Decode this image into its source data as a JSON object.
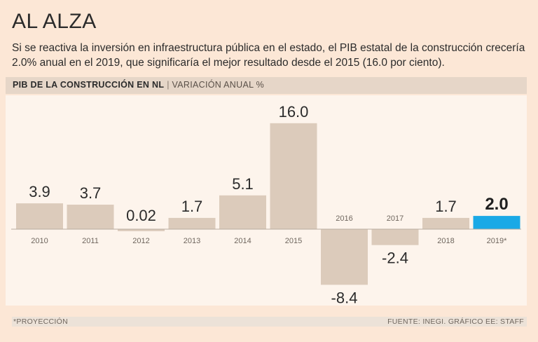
{
  "header": {
    "title": "AL ALZA",
    "subtitle": "Si se reactiva la inversión en infraestructura pública en el estado, el PIB estatal de la construcción crecería 2.0% anual en el 2019, que significaría el mejor resultado desde el 2015 (16.0 por ciento)."
  },
  "chart_header": {
    "label": "PIB DE LA CONSTRUCCIÓN EN NL",
    "separator": "|",
    "unit": "VARIACIÓN ANUAL %"
  },
  "colors": {
    "bar": "#dccbbb",
    "highlight": "#1aa9e6",
    "baseline": "#b9aca0"
  },
  "chart_data": {
    "type": "bar",
    "title": "PIB DE LA CONSTRUCCIÓN EN NL",
    "ylabel": "VARIACIÓN ANUAL %",
    "xlabel": "",
    "ylim": [
      -8.4,
      16.0
    ],
    "grid": false,
    "categories": [
      "2010",
      "2011",
      "2012",
      "2013",
      "2014",
      "2015",
      "2016",
      "2017",
      "2018",
      "2019*"
    ],
    "values": [
      3.9,
      3.7,
      0.02,
      1.7,
      5.1,
      16.0,
      -8.4,
      -2.4,
      1.7,
      2.0
    ],
    "labels": [
      "3.9",
      "3.7",
      "0.02",
      "1.7",
      "5.1",
      "16.0",
      "-8.4",
      "-2.4",
      "1.7",
      "2.0"
    ],
    "highlight_index": 9
  },
  "footer": {
    "note": "*PROYECCIÓN",
    "source": "FUENTE: INEGI. GRÁFICO EE: STAFF"
  }
}
